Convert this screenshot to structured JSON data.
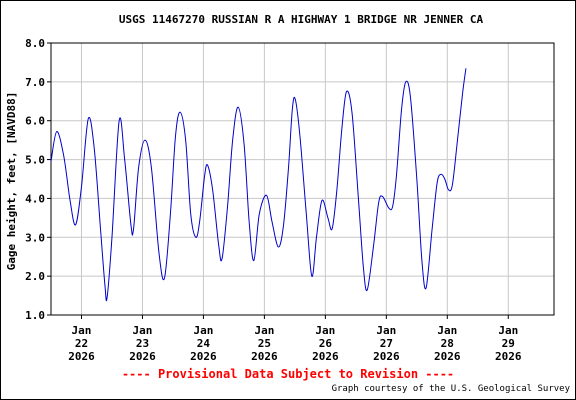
{
  "chart_data": {
    "type": "line",
    "title": "USGS 11467270 RUSSIAN R A HIGHWAY 1 BRIDGE NR JENNER CA",
    "ylabel": "Gage height, feet, [NAVD88]",
    "xlabel": "",
    "ylim": [
      1.0,
      8.0
    ],
    "y_ticks": [
      "1.0",
      "2.0",
      "3.0",
      "4.0",
      "5.0",
      "6.0",
      "7.0",
      "8.0"
    ],
    "x_range": [
      "2026-01-21T12:00",
      "2026-01-29T18:00"
    ],
    "x_ticks": [
      {
        "line1": "Jan",
        "line2": "22",
        "line3": "2026"
      },
      {
        "line1": "Jan",
        "line2": "23",
        "line3": "2026"
      },
      {
        "line1": "Jan",
        "line2": "24",
        "line3": "2026"
      },
      {
        "line1": "Jan",
        "line2": "25",
        "line3": "2026"
      },
      {
        "line1": "Jan",
        "line2": "26",
        "line3": "2026"
      },
      {
        "line1": "Jan",
        "line2": "27",
        "line3": "2026"
      },
      {
        "line1": "Jan",
        "line2": "28",
        "line3": "2026"
      },
      {
        "line1": "Jan",
        "line2": "29",
        "line3": "2026"
      }
    ],
    "grid": true,
    "line_color": "#0000cc",
    "series": [
      {
        "points": [
          [
            "2026-01-21T12:00",
            4.95
          ],
          [
            "2026-01-21T14:15",
            5.72
          ],
          [
            "2026-01-21T17:00",
            5.1
          ],
          [
            "2026-01-21T19:30",
            3.95
          ],
          [
            "2026-01-21T21:40",
            3.32
          ],
          [
            "2026-01-22T00:00",
            4.3
          ],
          [
            "2026-01-22T02:40",
            6.05
          ],
          [
            "2026-01-22T05:00",
            5.3
          ],
          [
            "2026-01-22T07:30",
            3.2
          ],
          [
            "2026-01-22T09:15",
            1.75
          ],
          [
            "2026-01-22T10:05",
            1.45
          ],
          [
            "2026-01-22T12:00",
            3.0
          ],
          [
            "2026-01-22T14:50",
            6.0
          ],
          [
            "2026-01-22T17:00",
            5.0
          ],
          [
            "2026-01-22T19:30",
            3.3
          ],
          [
            "2026-01-22T20:30",
            3.22
          ],
          [
            "2026-01-22T22:30",
            4.8
          ],
          [
            "2026-01-23T01:00",
            5.5
          ],
          [
            "2026-01-23T03:30",
            4.8
          ],
          [
            "2026-01-23T06:30",
            2.6
          ],
          [
            "2026-01-23T08:40",
            1.95
          ],
          [
            "2026-01-23T11:00",
            3.6
          ],
          [
            "2026-01-23T13:00",
            5.6
          ],
          [
            "2026-01-23T14:50",
            6.22
          ],
          [
            "2026-01-23T17:00",
            5.5
          ],
          [
            "2026-01-23T19:00",
            3.6
          ],
          [
            "2026-01-23T21:00",
            3.0
          ],
          [
            "2026-01-23T22:30",
            3.4
          ],
          [
            "2026-01-24T00:30",
            4.6
          ],
          [
            "2026-01-24T01:40",
            4.85
          ],
          [
            "2026-01-24T03:40",
            4.2
          ],
          [
            "2026-01-24T06:00",
            2.8
          ],
          [
            "2026-01-24T07:20",
            2.45
          ],
          [
            "2026-01-24T09:30",
            3.8
          ],
          [
            "2026-01-24T11:30",
            5.5
          ],
          [
            "2026-01-24T13:40",
            6.35
          ],
          [
            "2026-01-24T16:00",
            5.4
          ],
          [
            "2026-01-24T18:00",
            3.4
          ],
          [
            "2026-01-24T19:50",
            2.4
          ],
          [
            "2026-01-24T22:00",
            3.6
          ],
          [
            "2026-01-25T00:50",
            4.08
          ],
          [
            "2026-01-25T03:00",
            3.4
          ],
          [
            "2026-01-25T05:30",
            2.75
          ],
          [
            "2026-01-25T07:30",
            3.3
          ],
          [
            "2026-01-25T09:30",
            4.8
          ],
          [
            "2026-01-25T11:00",
            6.3
          ],
          [
            "2026-01-25T12:10",
            6.55
          ],
          [
            "2026-01-25T14:00",
            5.6
          ],
          [
            "2026-01-25T16:30",
            3.6
          ],
          [
            "2026-01-25T18:40",
            2.0
          ],
          [
            "2026-01-25T20:30",
            3.0
          ],
          [
            "2026-01-25T22:40",
            3.95
          ],
          [
            "2026-01-26T01:00",
            3.5
          ],
          [
            "2026-01-26T02:40",
            3.22
          ],
          [
            "2026-01-26T04:30",
            4.2
          ],
          [
            "2026-01-26T06:30",
            5.8
          ],
          [
            "2026-01-26T08:20",
            6.75
          ],
          [
            "2026-01-26T10:30",
            6.2
          ],
          [
            "2026-01-26T13:00",
            4.0
          ],
          [
            "2026-01-26T15:00",
            2.2
          ],
          [
            "2026-01-26T16:30",
            1.65
          ],
          [
            "2026-01-26T19:00",
            2.8
          ],
          [
            "2026-01-26T21:00",
            3.9
          ],
          [
            "2026-01-26T22:30",
            4.05
          ],
          [
            "2026-01-27T01:00",
            3.75
          ],
          [
            "2026-01-27T02:30",
            3.8
          ],
          [
            "2026-01-27T04:00",
            4.6
          ],
          [
            "2026-01-27T06:00",
            6.3
          ],
          [
            "2026-01-27T07:40",
            7.0
          ],
          [
            "2026-01-27T09:30",
            6.6
          ],
          [
            "2026-01-27T12:00",
            4.5
          ],
          [
            "2026-01-27T14:00",
            2.4
          ],
          [
            "2026-01-27T15:40",
            1.7
          ],
          [
            "2026-01-27T18:00",
            3.2
          ],
          [
            "2026-01-27T20:00",
            4.4
          ],
          [
            "2026-01-27T21:30",
            4.62
          ],
          [
            "2026-01-27T23:00",
            4.5
          ],
          [
            "2026-01-28T00:30",
            4.22
          ],
          [
            "2026-01-28T02:00",
            4.35
          ],
          [
            "2026-01-28T04:00",
            5.5
          ],
          [
            "2026-01-28T06:00",
            6.7
          ],
          [
            "2026-01-28T07:20",
            7.35
          ]
        ]
      }
    ]
  },
  "notes": {
    "provisional": "---- Provisional Data Subject to Revision ----",
    "courtesy": "Graph courtesy of the U.S. Geological Survey"
  }
}
